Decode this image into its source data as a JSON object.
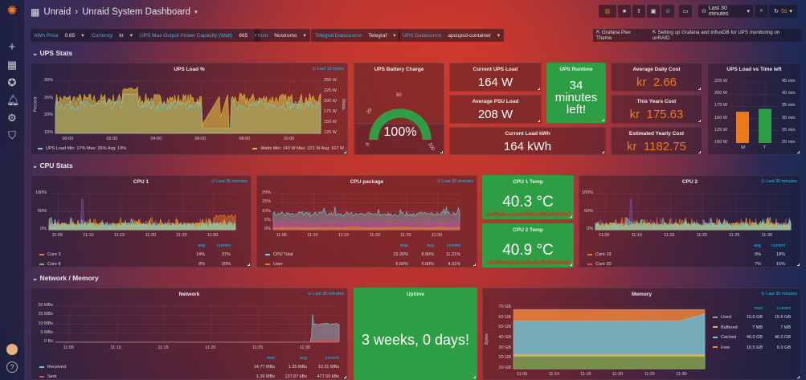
{
  "header": {
    "breadcrumb_parent": "Unraid",
    "title": "Unraid System Dashboard",
    "time_range": "Last 30 minutes",
    "refresh": "5s"
  },
  "variables": [
    {
      "label": "kWh Price",
      "value": "0.65"
    },
    {
      "label": "Currency",
      "value": "kr"
    },
    {
      "label": "UPS Max Output Power Capacity (Watt)",
      "value": "865"
    },
    {
      "label": "host",
      "value": "Nostromo"
    },
    {
      "label": "Telegraf Datasource",
      "value": "Telegraf"
    },
    {
      "label": "UPS Datasource",
      "value": "apcupsd-container"
    }
  ],
  "links": [
    "Grafana Plex Theme",
    "Setting up Grafana and InfluxDB for UPS monitoring on unRAID"
  ],
  "rows": [
    "UPS Stats",
    "CPU Stats",
    "Network / Memory"
  ],
  "colors": {
    "green": "#2e9e45",
    "orange": "#eb7b18",
    "blue": "#33b5e5",
    "yellow": "#eab839",
    "cyan": "#6ed0e0",
    "red": "#e24d42"
  },
  "ups_load": {
    "title": "UPS Load %",
    "time": "Last 12 hours",
    "ylabel": "Percent",
    "y2label": "Watts",
    "yticks": [
      "30%",
      "25%",
      "20%",
      "15%"
    ],
    "y2ticks": [
      "250 W",
      "225 W",
      "200 W",
      "175 W",
      "150 W",
      "125 W"
    ],
    "xticks": [
      "00:00",
      "02:00",
      "04:00",
      "06:00",
      "08:00",
      "10:00"
    ],
    "legend_left": "UPS Load  Min: 17%  Max: 26%  Avg: 19%",
    "legend_right": "Watts  Min: 143 W  Max: 221 W  Avg: 167 W"
  },
  "battery": {
    "title": "UPS Battery Charge",
    "value": "100%",
    "percent": 100,
    "ticks": [
      "0",
      "20",
      "50",
      "100"
    ]
  },
  "current_load": {
    "title": "Current UPS Load",
    "value": "164 W"
  },
  "avg_psu": {
    "title": "Average PSU Load",
    "value": "208 W"
  },
  "load_kwh": {
    "title": "Current Load kWh",
    "value": "164 kWh"
  },
  "runtime": {
    "title": "UPS Runtime",
    "value_lines": [
      "34",
      "minutes",
      "left!"
    ]
  },
  "daily_cost": {
    "title": "Average Daily Cost",
    "value": "kr  2.66"
  },
  "year_cost": {
    "title": "This Years Cost",
    "value": "kr  175.63"
  },
  "yearly_cost": {
    "title": "Estimated Yearly Cost",
    "value": "kr  1182.75"
  },
  "load_vs_time": {
    "title": "UPS Load vs Time left",
    "yticks": [
      "225 W",
      "200 W",
      "175 W",
      "150 W",
      "125 W",
      "100 W"
    ],
    "y2ticks": [
      "45 min",
      "40 min",
      "35 min",
      "30 min",
      "25 min",
      "20 min"
    ],
    "categories": [
      "W",
      "T"
    ],
    "values": [
      164,
      34
    ],
    "units": [
      "W",
      "min"
    ]
  },
  "cpu1": {
    "title": "CPU 1",
    "time": "Last 30 minutes",
    "yticks": [
      "100%",
      "50%",
      "0%"
    ],
    "xticks": [
      "11:05",
      "11:10",
      "11:15",
      "11:20",
      "11:25",
      "11:30"
    ],
    "headers": [
      "avg",
      "current"
    ],
    "rows": [
      {
        "name": "Core 3",
        "vals": [
          "14%",
          "37%"
        ]
      },
      {
        "name": "Core 8",
        "vals": [
          "9%",
          "20%"
        ]
      }
    ]
  },
  "cpu_pkg": {
    "title": "CPU package",
    "time": "Last 30 minutes",
    "yticks": [
      "20%",
      "15%",
      "10%",
      "5%",
      "0%"
    ],
    "xticks": [
      "11:05",
      "11:10",
      "11:15",
      "11:20",
      "11:25",
      "11:30"
    ],
    "headers": [
      "max",
      "avg",
      "current"
    ],
    "rows": [
      {
        "name": "CPU Total",
        "vals": [
          "15.26%",
          "8.96%",
          "11.21%"
        ]
      },
      {
        "name": "User",
        "vals": [
          "6.56%",
          "3.00%",
          "4.31%"
        ]
      }
    ]
  },
  "cpu1_temp": {
    "title": "CPU 1 Temp",
    "value": "40.3 °C"
  },
  "cpu2_temp": {
    "title": "CPU 2 Temp",
    "value": "40.9 °C"
  },
  "cpu2": {
    "title": "CPU 2",
    "time": "Last 30 minutes",
    "yticks": [
      "100%",
      "50%",
      "0%"
    ],
    "xticks": [
      "11:05",
      "11:10",
      "11:15",
      "11:20",
      "11:25",
      "11:30"
    ],
    "headers": [
      "avg",
      "current"
    ],
    "rows": [
      {
        "name": "Core 19",
        "vals": [
          "9%",
          "18%"
        ]
      },
      {
        "name": "Core 20",
        "vals": [
          "7%",
          "15%"
        ]
      }
    ]
  },
  "network": {
    "title": "Network",
    "time": "Last 30 minutes",
    "yticks": [
      "20 MBs",
      "15 MBs",
      "10 MBs",
      "5 MBs",
      "0 Bs"
    ],
    "xticks": [
      "11:05",
      "11:10",
      "11:15",
      "11:20",
      "11:25",
      "11:30"
    ],
    "headers": [
      "max",
      "avg",
      "current"
    ],
    "rows": [
      {
        "name": "Received",
        "vals": [
          "14.77 MBs",
          "1.35 MBs",
          "10.31 MBs"
        ]
      },
      {
        "name": "Sent",
        "vals": [
          "1.26 MBs",
          "137.87 kBs",
          "477.50 kBs"
        ]
      }
    ]
  },
  "uptime": {
    "title": "Uptime",
    "value": "3 weeks, 0 days!"
  },
  "memory": {
    "title": "Memory",
    "time": "Last 30 minutes",
    "ylabel": "Bytes",
    "yticks": [
      "70 GB",
      "60 GB",
      "50 GB",
      "40 GB",
      "30 GB",
      "20 GB",
      "10 GB"
    ],
    "xticks": [
      "11:05",
      "11:10",
      "11:15",
      "11:20",
      "11:25",
      "11:30"
    ],
    "headers": [
      "max",
      "current"
    ],
    "rows": [
      {
        "name": "Used",
        "vals": [
          "15.6 GB",
          "15.6 GB"
        ]
      },
      {
        "name": "Buffered",
        "vals": [
          "7 MB",
          "7 MB"
        ]
      },
      {
        "name": "Cached",
        "vals": [
          "46.0 GB",
          "46.0 GB"
        ]
      },
      {
        "name": "Free",
        "vals": [
          "10.5 GB",
          "6.0 GB"
        ]
      }
    ]
  }
}
